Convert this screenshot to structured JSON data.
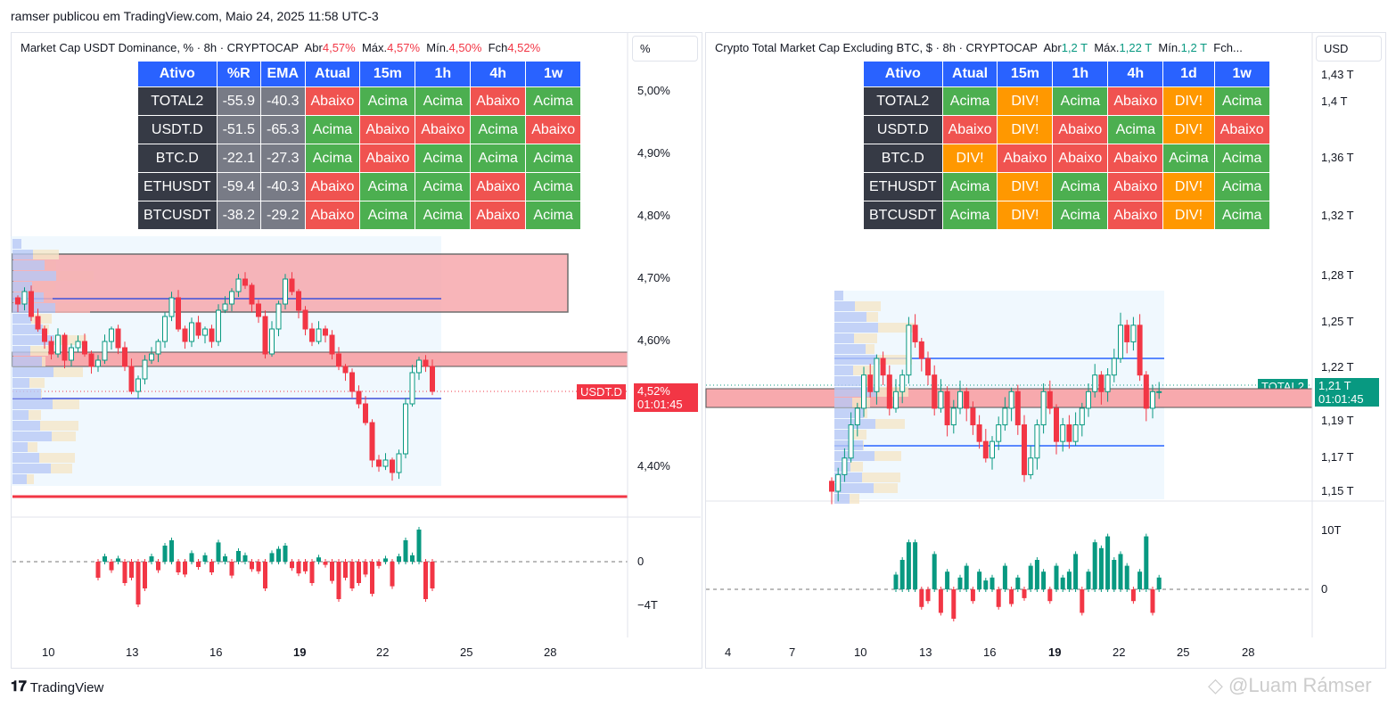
{
  "header": {
    "published": "ramser publicou em TradingView.com, Maio 24, 2025 11:58 UTC-3"
  },
  "left": {
    "title": "Market Cap USDT Dominance, % · 8h · CRYPTOCAP",
    "ohlc": {
      "o_label": "Abr",
      "o": "4,57%",
      "h_label": "Máx.",
      "h": "4,57%",
      "l_label": "Mín.",
      "l": "4,50%",
      "c_label": "Fch",
      "c": "4,52%"
    },
    "unit": "%",
    "table": {
      "headers": [
        "Ativo",
        "%R",
        "EMA",
        "Atual",
        "15m",
        "1h",
        "4h",
        "1w"
      ],
      "rows": [
        [
          "TOTAL2",
          "-55.9",
          "-40.3",
          "Abaixo",
          "Acima",
          "Acima",
          "Abaixo",
          "Acima"
        ],
        [
          "USDT.D",
          "-51.5",
          "-65.3",
          "Acima",
          "Abaixo",
          "Abaixo",
          "Acima",
          "Abaixo"
        ],
        [
          "BTC.D",
          "-22.1",
          "-27.3",
          "Acima",
          "Abaixo",
          "Acima",
          "Acima",
          "Acima"
        ],
        [
          "ETHUSDT",
          "-59.4",
          "-40.3",
          "Abaixo",
          "Acima",
          "Acima",
          "Abaixo",
          "Acima"
        ],
        [
          "BTCUSDT",
          "-38.2",
          "-29.2",
          "Abaixo",
          "Acima",
          "Acima",
          "Abaixo",
          "Acima"
        ]
      ]
    },
    "y_ticks": [
      "5,00%",
      "4,90%",
      "4,80%",
      "4,70%",
      "4,60%",
      "4,40%"
    ],
    "osc_ticks": [
      "0",
      "−4T"
    ],
    "x_ticks": [
      "10",
      "13",
      "16",
      "19",
      "22",
      "25",
      "28"
    ],
    "symbol_tag": "USDT.D",
    "price": "4,52%",
    "countdown": "01:01:45",
    "price_color": "#f23645",
    "chart_data": {
      "type": "candlestick",
      "ylim": [
        4.35,
        5.02
      ],
      "closes": [
        4.66,
        4.68,
        4.64,
        4.62,
        4.6,
        4.58,
        4.61,
        4.57,
        4.59,
        4.6,
        4.58,
        4.56,
        4.57,
        4.6,
        4.62,
        4.59,
        4.56,
        4.52,
        4.54,
        4.57,
        4.58,
        4.6,
        4.64,
        4.67,
        4.62,
        4.6,
        4.63,
        4.61,
        4.62,
        4.6,
        4.65,
        4.66,
        4.68,
        4.7,
        4.69,
        4.66,
        4.64,
        4.58,
        4.62,
        4.66,
        4.7,
        4.68,
        4.65,
        4.62,
        4.6,
        4.62,
        4.61,
        4.58,
        4.56,
        4.55,
        4.52,
        4.5,
        4.47,
        4.41,
        4.4,
        4.41,
        4.39,
        4.42,
        4.5,
        4.55,
        4.57,
        4.56,
        4.52
      ],
      "osc": [
        0,
        0,
        0,
        0,
        0,
        0,
        0,
        0,
        0,
        0,
        0,
        0,
        -1.5,
        0.5,
        -0.8,
        0.3,
        -2,
        -1.5,
        -4,
        -2.5,
        0.5,
        -0.8,
        1.5,
        2,
        -1,
        -1.2,
        0.8,
        -0.5,
        0.6,
        -1,
        1.8,
        0.5,
        -1.3,
        1,
        0.6,
        -0.7,
        -0.9,
        -2.5,
        0.8,
        1.2,
        1.5,
        -0.6,
        -1.1,
        -0.9,
        -2,
        0.4,
        -0.3,
        -1.8,
        -3.5,
        -1.5,
        -2.5,
        -2,
        -1.2,
        -3,
        -0.4,
        0.3,
        -2.3,
        0.5,
        2,
        0.6,
        3,
        -3.5,
        -2.5
      ]
    }
  },
  "right": {
    "title": "Crypto Total Market Cap Excluding BTC, $ · 8h · CRYPTOCAP",
    "ohlc": {
      "o_label": "Abr",
      "o": "1,2 T",
      "h_label": "Máx.",
      "h": "1,22 T",
      "l_label": "Mín.",
      "l": "1,2 T",
      "c_label": "Fch..."
    },
    "unit": "USD",
    "table": {
      "headers": [
        "Ativo",
        "Atual",
        "15m",
        "1h",
        "4h",
        "1d",
        "1w"
      ],
      "rows": [
        [
          "TOTAL2",
          "Acima",
          "DIV!",
          "Acima",
          "Abaixo",
          "DIV!",
          "Acima"
        ],
        [
          "USDT.D",
          "Abaixo",
          "DIV!",
          "Abaixo",
          "Acima",
          "DIV!",
          "Abaixo"
        ],
        [
          "BTC.D",
          "DIV!",
          "Abaixo",
          "Abaixo",
          "Abaixo",
          "Acima",
          "Acima"
        ],
        [
          "ETHUSDT",
          "Acima",
          "DIV!",
          "Acima",
          "Abaixo",
          "DIV!",
          "Acima"
        ],
        [
          "BTCUSDT",
          "Acima",
          "DIV!",
          "Acima",
          "Abaixo",
          "DIV!",
          "Acima"
        ]
      ]
    },
    "y_ticks": [
      "1,43 T",
      "1,4 T",
      "1,36 T",
      "1,32 T",
      "1,28 T",
      "1,25 T",
      "1,22 T",
      "1,19 T",
      "1,17 T",
      "1,15 T"
    ],
    "osc_ticks": [
      "10T",
      "0"
    ],
    "x_ticks": [
      "4",
      "7",
      "10",
      "13",
      "16",
      "19",
      "22",
      "25",
      "28"
    ],
    "symbol_tag": "TOTAL2",
    "price": "1,21 T",
    "countdown": "01:01:45",
    "price_color": "#089981",
    "chart_data": {
      "type": "candlestick",
      "ylim": [
        1.14,
        1.43
      ],
      "closes": [
        1.15,
        1.16,
        1.17,
        1.19,
        1.2,
        1.22,
        1.21,
        1.23,
        1.22,
        1.2,
        1.21,
        1.22,
        1.25,
        1.24,
        1.23,
        1.22,
        1.2,
        1.21,
        1.19,
        1.2,
        1.21,
        1.2,
        1.19,
        1.18,
        1.17,
        1.18,
        1.19,
        1.2,
        1.21,
        1.19,
        1.16,
        1.17,
        1.19,
        1.21,
        1.2,
        1.18,
        1.19,
        1.18,
        1.19,
        1.2,
        1.21,
        1.22,
        1.21,
        1.22,
        1.23,
        1.25,
        1.24,
        1.25,
        1.22,
        1.2,
        1.21,
        1.21
      ],
      "osc": [
        0,
        0,
        0,
        0,
        0,
        0,
        0,
        0,
        0,
        0,
        2.5,
        5,
        8,
        8,
        -3,
        -2,
        6,
        -4,
        3,
        -5,
        2,
        4,
        -2,
        3,
        1.5,
        2,
        -3,
        4,
        -2.5,
        2,
        -1.5,
        4,
        5,
        3,
        -2,
        4,
        2,
        3,
        6,
        -4,
        3,
        8,
        7,
        9,
        5,
        6,
        4,
        -2,
        3,
        9,
        -4,
        2
      ]
    }
  },
  "footer": {
    "brand": "TradingView",
    "watermark": "@Luam Rámser"
  },
  "colors": {
    "up": "#089981",
    "down": "#f23645",
    "accent": "#2962ff"
  }
}
